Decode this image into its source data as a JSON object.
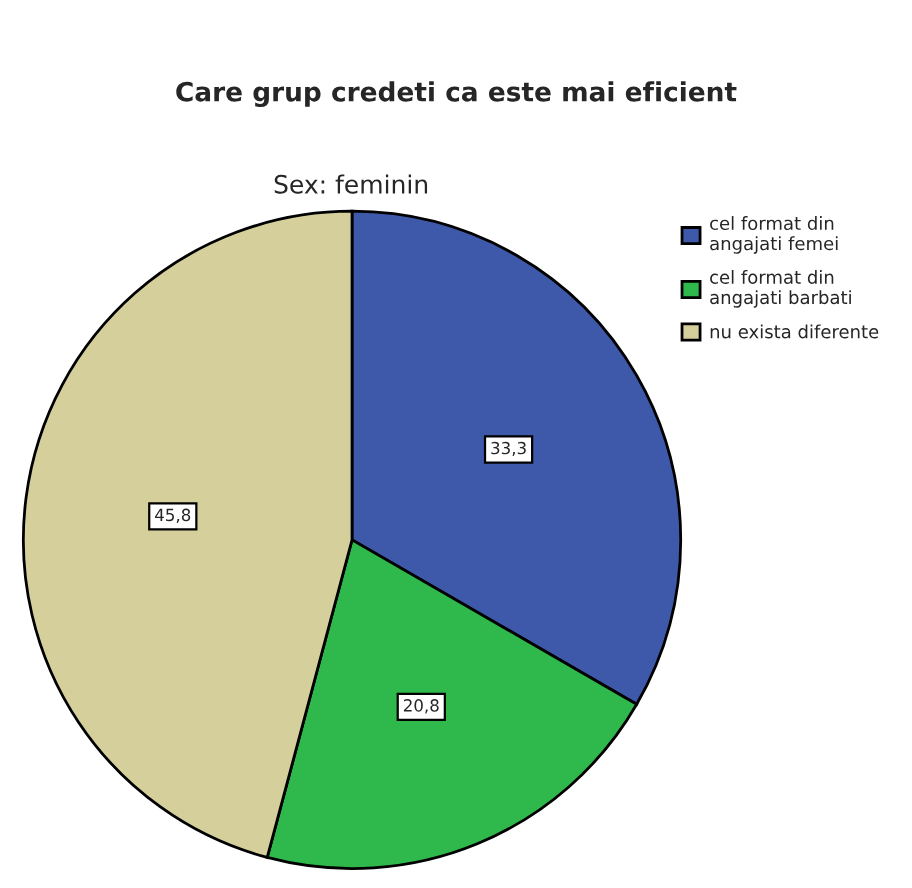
{
  "chart_data": {
    "type": "pie",
    "title": "Care grup credeti ca este mai eficient",
    "subtitle": "Sex: feminin",
    "categories": [
      "cel format din\nangajati femei",
      "cel format din\nangajati barbati",
      "nu exista diferente"
    ],
    "values": [
      33.3,
      20.8,
      45.8
    ],
    "colors": [
      "#3f59aa",
      "#2fb84b",
      "#d4cf9b"
    ],
    "value_labels": [
      "33,3",
      "20,8",
      "45,8"
    ],
    "legend": "top right"
  }
}
